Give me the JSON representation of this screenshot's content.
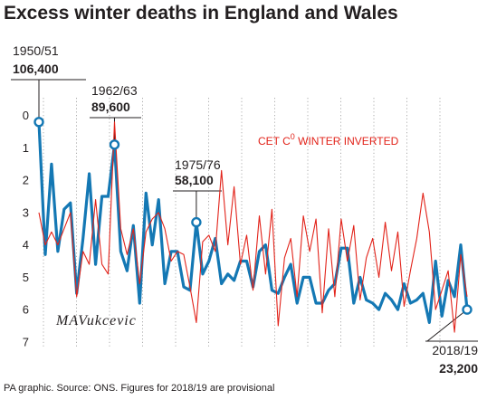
{
  "chart_data": {
    "type": "line",
    "title": "Excess winter deaths in England and Wales",
    "source": "PA graphic. Source: ONS. Figures for 2018/19 are provisional",
    "y_axis": {
      "side": "left",
      "ticks": [
        0,
        1,
        2,
        3,
        4,
        5,
        6,
        7
      ],
      "ylim": [
        -0.55,
        7.2
      ],
      "inverted": true
    },
    "x": {
      "start_season": "1950/51",
      "end_season": "2018/19"
    },
    "grid": "vertical-dotted",
    "series": [
      {
        "name": "Excess winter deaths",
        "color": "#1478b4",
        "values": [
          0.2,
          4.3,
          1.5,
          4.2,
          2.9,
          2.7,
          5.5,
          3.8,
          1.8,
          4.6,
          2.5,
          2.5,
          0.9,
          4.2,
          4.8,
          3.4,
          5.8,
          2.4,
          4.0,
          2.6,
          5.2,
          4.2,
          4.2,
          5.3,
          5.4,
          3.3,
          4.9,
          4.5,
          3.8,
          5.2,
          4.9,
          5.1,
          4.5,
          4.5,
          5.3,
          4.2,
          4.0,
          5.4,
          5.5,
          5.0,
          4.6,
          5.8,
          5.0,
          5.0,
          5.8,
          5.8,
          5.4,
          5.2,
          4.1,
          4.1,
          5.8,
          5.0,
          5.7,
          5.8,
          6.0,
          5.5,
          5.7,
          6.0,
          5.2,
          5.8,
          5.7,
          5.5,
          6.4,
          4.5,
          6.2,
          5.1,
          5.6,
          4.0,
          6.0
        ]
      },
      {
        "name": "CET C° WINTER INVERTED",
        "color": "#e2231a",
        "values": [
          3.0,
          4.0,
          3.6,
          4.0,
          3.5,
          3.0,
          5.6,
          4.2,
          4.6,
          2.6,
          4.6,
          4.9,
          0.2,
          3.5,
          4.3,
          3.5,
          5.2,
          3.6,
          3.2,
          3.0,
          3.5,
          4.5,
          4.2,
          4.3,
          5.3,
          6.4,
          3.9,
          3.7,
          4.2,
          1.7,
          4.0,
          2.2,
          4.6,
          3.7,
          5.4,
          3.1,
          4.9,
          2.9,
          6.5,
          4.4,
          3.8,
          5.6,
          3.1,
          4.2,
          3.2,
          6.1,
          3.5,
          5.6,
          3.2,
          4.5,
          3.4,
          5.7,
          4.4,
          3.8,
          5.0,
          3.3,
          4.8,
          3.6,
          5.9,
          4.8,
          3.8,
          2.4,
          3.6,
          6.0,
          5.4,
          4.8,
          6.7,
          4.3,
          5.6
        ]
      }
    ],
    "annotations": [
      {
        "season": "1950/51",
        "value": "106,400",
        "index": 0
      },
      {
        "season": "1962/63",
        "value": "89,600",
        "index": 12
      },
      {
        "season": "1975/76",
        "value": "58,100",
        "index": 25
      },
      {
        "season": "2018/19",
        "value": "23,200",
        "index": 68
      }
    ],
    "series_label": "CET C",
    "series_label_sup": "0",
    "series_label_rest": " WINTER INVERTED",
    "signature": "MAVukcevic"
  }
}
